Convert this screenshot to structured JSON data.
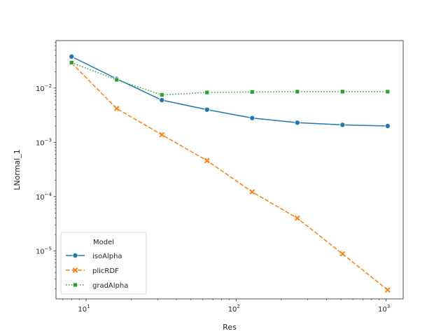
{
  "chart_data": {
    "type": "line",
    "xlabel": "Res",
    "ylabel": "LNormal_1",
    "xscale": "log",
    "yscale": "log",
    "xlim": [
      6.3,
      1300
    ],
    "ylim": [
      1.3e-06,
      0.075
    ],
    "x_ticks": [
      {
        "value": 10,
        "base": "10",
        "exp": "1"
      },
      {
        "value": 100,
        "base": "10",
        "exp": "2"
      },
      {
        "value": 1000,
        "base": "10",
        "exp": "3"
      }
    ],
    "y_ticks": [
      {
        "value": 1e-05,
        "base": "10",
        "exp": "−5"
      },
      {
        "value": 0.0001,
        "base": "10",
        "exp": "−4"
      },
      {
        "value": 0.001,
        "base": "10",
        "exp": "−3"
      },
      {
        "value": 0.01,
        "base": "10",
        "exp": "−2"
      }
    ],
    "grid": false,
    "legend": {
      "title": "Model",
      "position": "lower-left"
    },
    "x": [
      8,
      16,
      32,
      64,
      128,
      256,
      512,
      1024
    ],
    "series": [
      {
        "name": "isoAlpha",
        "color": "#1f77b4",
        "linestyle": "solid",
        "marker": "circle",
        "values": [
          0.038,
          0.0148,
          0.006,
          0.004,
          0.0028,
          0.0023,
          0.0021,
          0.002
        ]
      },
      {
        "name": "plicRDF",
        "color": "#ff7f0e",
        "linestyle": "dashed",
        "marker": "x",
        "values": [
          0.029,
          0.0042,
          0.00138,
          0.00046,
          0.000122,
          4e-05,
          8.8e-06,
          1.9e-06
        ]
      },
      {
        "name": "gradAlpha",
        "color": "#2ca02c",
        "linestyle": "dotted",
        "marker": "square",
        "values": [
          0.0295,
          0.0142,
          0.0075,
          0.0083,
          0.0085,
          0.0086,
          0.0086,
          0.0086
        ]
      }
    ]
  }
}
